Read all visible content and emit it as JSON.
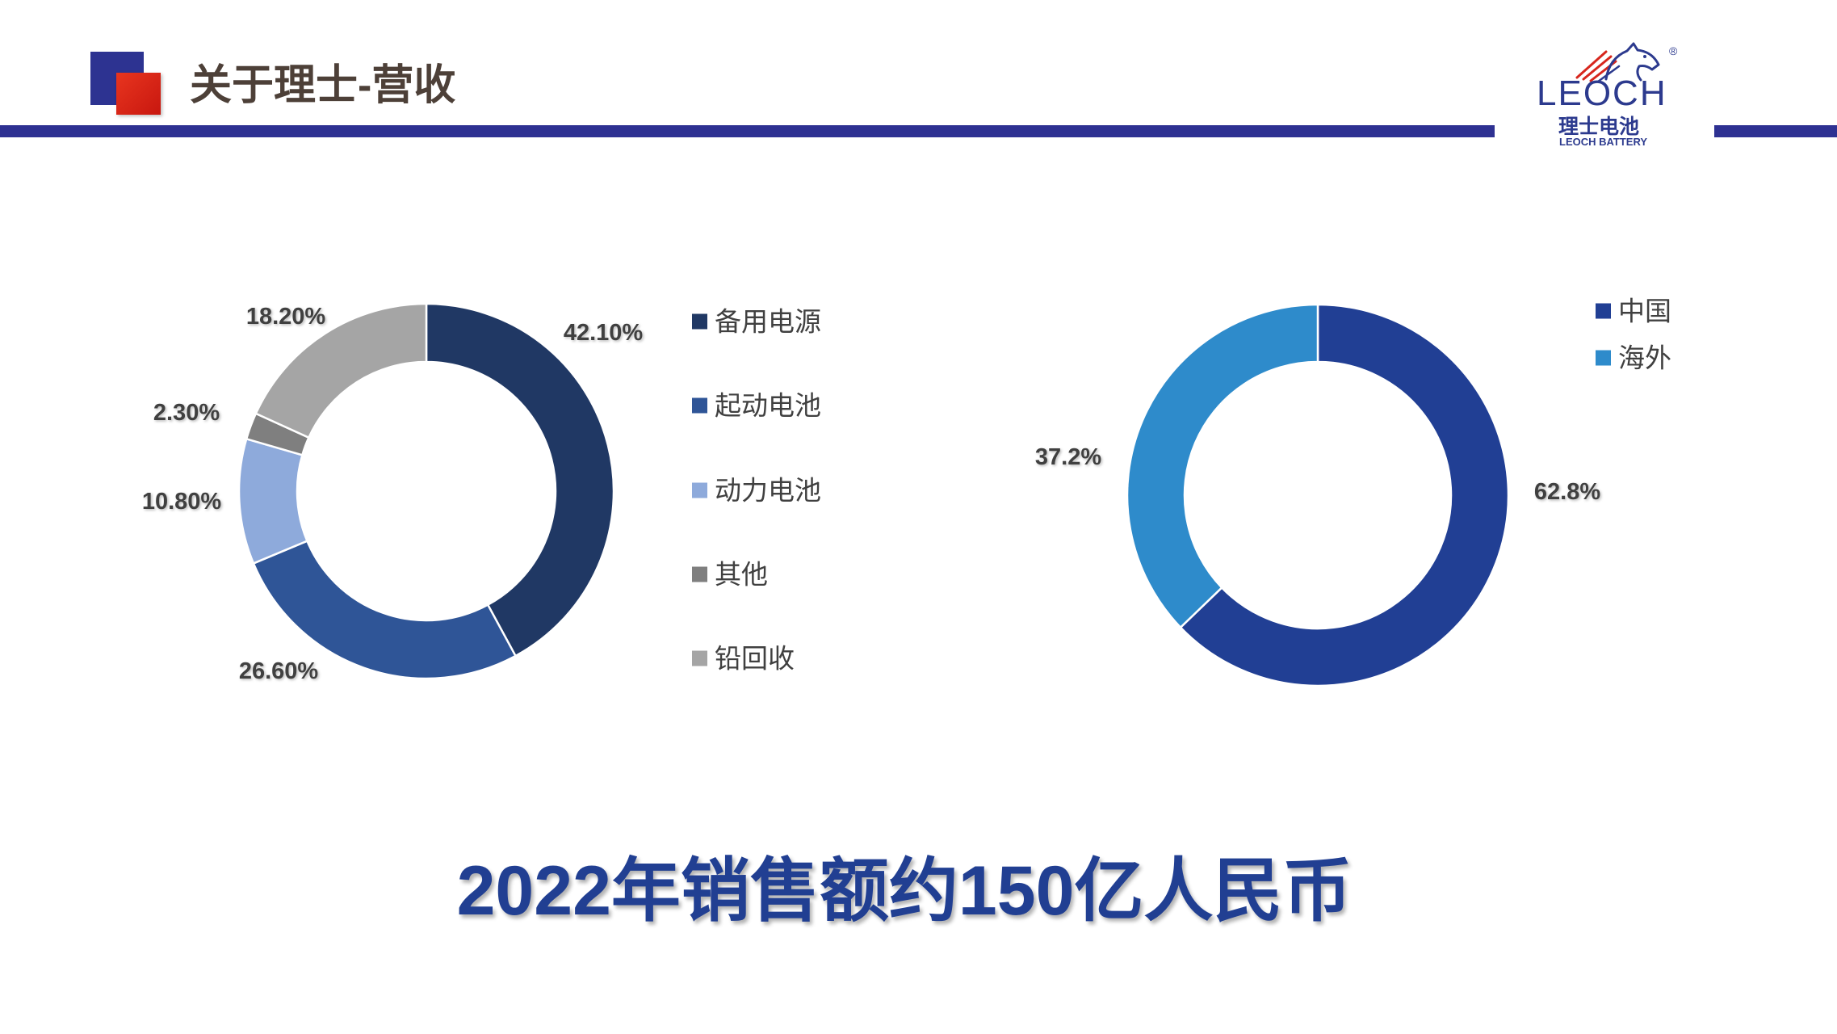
{
  "slide": {
    "title": "关于理士-营收",
    "summary": "2022年销售额约150亿人民币"
  },
  "logo": {
    "brand": "LEOCH",
    "registered_mark": "®",
    "name_cn": "理士电池",
    "name_en": "LEOCH BATTERY"
  },
  "colors": {
    "title": "#4d4038",
    "accent_bar": "#2e3192",
    "square_blue": "#2d3391",
    "square_red": "#d9261c",
    "summary": "#213f92",
    "label_text": "#404040",
    "logo_blue": "#2c3a8e",
    "logo_red": "#d7261d"
  },
  "chart_data": [
    {
      "type": "pie",
      "variant": "donut",
      "categories": [
        "备用电源",
        "起动电池",
        "动力电池",
        "其他",
        "铅回收"
      ],
      "values": [
        42.1,
        26.6,
        10.8,
        2.3,
        18.2
      ],
      "data_labels": [
        "42.10%",
        "26.60%",
        "10.80%",
        "2.30%",
        "18.20%"
      ],
      "colors": [
        "#203864",
        "#2f5597",
        "#8eaadb",
        "#7f7f7f",
        "#a5a5a5"
      ],
      "legend_position": "right"
    },
    {
      "type": "pie",
      "variant": "donut",
      "categories": [
        "中国",
        "海外"
      ],
      "values": [
        62.8,
        37.2
      ],
      "data_labels": [
        "62.8%",
        "37.2%"
      ],
      "colors": [
        "#213f94",
        "#2e8bcb"
      ],
      "legend_position": "top-right"
    }
  ]
}
